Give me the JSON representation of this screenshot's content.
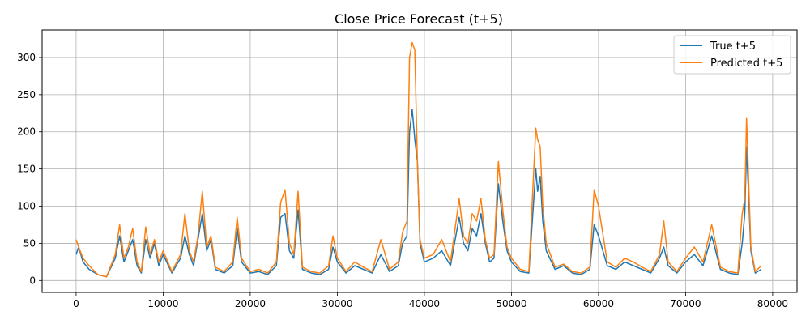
{
  "chart_data": {
    "type": "line",
    "title": "Close Price Forecast (t+5)",
    "xlabel": "",
    "ylabel": "",
    "xlim": [
      -3900,
      82800
    ],
    "ylim": [
      -16,
      337
    ],
    "xticks": [
      0,
      10000,
      20000,
      30000,
      40000,
      50000,
      60000,
      70000,
      80000
    ],
    "yticks": [
      0,
      50,
      100,
      150,
      200,
      250,
      300
    ],
    "grid": true,
    "legend_position": "top-right",
    "series": [
      {
        "name": "True t+5",
        "color": "#1f77b4",
        "x": [
          0,
          300,
          800,
          1500,
          2500,
          3500,
          4500,
          5000,
          5500,
          6000,
          6500,
          7000,
          7500,
          8000,
          8500,
          9000,
          9500,
          10000,
          11000,
          12000,
          12500,
          13000,
          13500,
          14000,
          14500,
          15000,
          15500,
          16000,
          17000,
          18000,
          18500,
          19000,
          20000,
          21000,
          22000,
          23000,
          23500,
          24000,
          24500,
          25000,
          25500,
          26000,
          27000,
          28000,
          29000,
          29500,
          30000,
          31000,
          32000,
          33000,
          34000,
          35000,
          36000,
          37000,
          37500,
          38000,
          38300,
          38600,
          38900,
          39200,
          39500,
          40000,
          41000,
          42000,
          43000,
          44000,
          44500,
          45000,
          45500,
          46000,
          46500,
          47000,
          47500,
          48000,
          48500,
          49000,
          49500,
          50000,
          51000,
          52000,
          52800,
          53000,
          53300,
          53600,
          54000,
          55000,
          56000,
          57000,
          58000,
          59000,
          59500,
          60000,
          61000,
          62000,
          63000,
          64000,
          65000,
          66000,
          67000,
          67500,
          68000,
          69000,
          70000,
          71000,
          72000,
          73000,
          74000,
          75000,
          76000,
          76500,
          76800,
          77000,
          77500,
          78000,
          78700
        ],
        "values": [
          35,
          45,
          25,
          15,
          8,
          5,
          30,
          60,
          25,
          40,
          55,
          20,
          10,
          55,
          30,
          50,
          20,
          35,
          10,
          30,
          60,
          35,
          20,
          55,
          90,
          40,
          55,
          15,
          10,
          20,
          70,
          25,
          10,
          12,
          8,
          20,
          85,
          90,
          40,
          30,
          95,
          15,
          10,
          8,
          15,
          45,
          25,
          10,
          20,
          15,
          10,
          35,
          12,
          20,
          50,
          60,
          200,
          230,
          190,
          160,
          50,
          25,
          30,
          40,
          20,
          85,
          50,
          40,
          70,
          60,
          90,
          50,
          25,
          30,
          130,
          80,
          40,
          25,
          12,
          10,
          150,
          120,
          140,
          80,
          40,
          15,
          20,
          10,
          8,
          15,
          75,
          60,
          20,
          15,
          25,
          20,
          15,
          10,
          30,
          45,
          20,
          10,
          25,
          35,
          20,
          60,
          15,
          10,
          8,
          50,
          90,
          180,
          40,
          10,
          15
        ]
      },
      {
        "name": "Predicted t+5",
        "color": "#ff7f0e",
        "x": [
          0,
          300,
          800,
          1500,
          2500,
          3500,
          4500,
          5000,
          5500,
          6000,
          6500,
          7000,
          7500,
          8000,
          8500,
          9000,
          9500,
          10000,
          11000,
          12000,
          12500,
          13000,
          13500,
          14000,
          14500,
          15000,
          15500,
          16000,
          17000,
          18000,
          18500,
          19000,
          20000,
          21000,
          22000,
          23000,
          23500,
          24000,
          24500,
          25000,
          25500,
          26000,
          27000,
          28000,
          29000,
          29500,
          30000,
          31000,
          32000,
          33000,
          34000,
          35000,
          36000,
          37000,
          37500,
          38000,
          38300,
          38600,
          38900,
          39200,
          39500,
          40000,
          41000,
          42000,
          43000,
          44000,
          44500,
          45000,
          45500,
          46000,
          46500,
          47000,
          47500,
          48000,
          48500,
          49000,
          49500,
          50000,
          51000,
          52000,
          52800,
          53000,
          53300,
          53600,
          54000,
          55000,
          56000,
          57000,
          58000,
          59000,
          59500,
          60000,
          61000,
          62000,
          63000,
          64000,
          65000,
          66000,
          67000,
          67500,
          68000,
          69000,
          70000,
          71000,
          72000,
          73000,
          74000,
          75000,
          76000,
          76500,
          76800,
          77000,
          77500,
          78000,
          78700
        ],
        "values": [
          55,
          45,
          30,
          20,
          8,
          5,
          35,
          75,
          30,
          45,
          70,
          25,
          12,
          72,
          35,
          55,
          25,
          40,
          12,
          35,
          90,
          40,
          25,
          60,
          120,
          45,
          60,
          18,
          12,
          25,
          85,
          30,
          12,
          15,
          10,
          25,
          105,
          122,
          50,
          35,
          120,
          18,
          12,
          10,
          20,
          60,
          30,
          12,
          25,
          18,
          12,
          55,
          15,
          25,
          65,
          80,
          300,
          320,
          310,
          160,
          55,
          30,
          35,
          55,
          25,
          110,
          60,
          50,
          90,
          80,
          110,
          55,
          30,
          35,
          160,
          95,
          45,
          30,
          15,
          12,
          205,
          190,
          180,
          100,
          50,
          18,
          22,
          12,
          10,
          18,
          122,
          100,
          25,
          18,
          30,
          25,
          18,
          12,
          35,
          80,
          25,
          12,
          30,
          45,
          25,
          75,
          18,
          12,
          10,
          90,
          110,
          218,
          45,
          12,
          20
        ]
      }
    ]
  }
}
